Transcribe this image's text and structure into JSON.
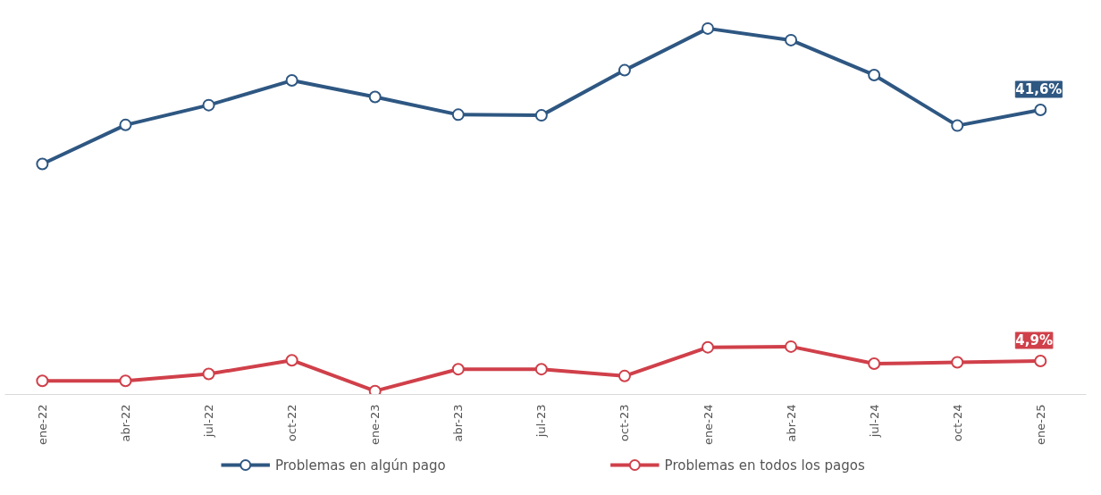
{
  "chart_data": {
    "type": "line",
    "categories": [
      "ene-22",
      "abr-22",
      "jul-22",
      "oct-22",
      "ene-23",
      "abr-23",
      "jul-23",
      "oct-23",
      "ene-24",
      "abr-24",
      "jul-24",
      "oct-24",
      "ene-25"
    ],
    "series": [
      {
        "name": "Problemas en algún pago",
        "color": "#2e5782",
        "values": [
          33.7,
          39.4,
          42.3,
          45.9,
          43.5,
          40.9,
          40.8,
          47.4,
          53.5,
          51.8,
          46.7,
          39.3,
          41.6
        ],
        "value_labels": [
          null,
          null,
          null,
          null,
          null,
          null,
          null,
          null,
          null,
          null,
          null,
          null,
          "41,6%"
        ]
      },
      {
        "name": "Problemas en todos los pagos",
        "color": "#d0404a",
        "values": [
          2.0,
          2.0,
          3.0,
          5.0,
          0.5,
          3.7,
          3.7,
          2.7,
          6.9,
          7.0,
          4.5,
          4.7,
          4.9
        ],
        "value_labels": [
          null,
          null,
          null,
          null,
          null,
          null,
          null,
          null,
          null,
          null,
          null,
          null,
          "4,9%"
        ]
      }
    ],
    "tick_labels": "x",
    "legend": "bottom",
    "marker": "circle",
    "line_style": "solid"
  }
}
